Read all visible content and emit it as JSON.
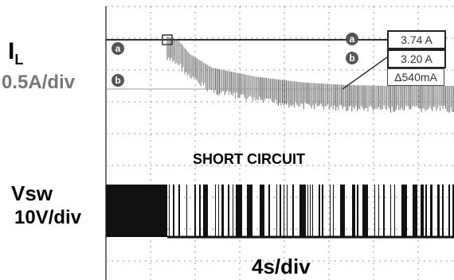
{
  "left_labels": {
    "il_main": "I",
    "il_sub": "L",
    "il_scale": "0.5A/div",
    "vsw": "Vsw",
    "vsw_scale": "10V/div"
  },
  "markers": {
    "a": "a",
    "b": "b"
  },
  "readouts": {
    "a_value": "3.74 A",
    "b_value": "3.20 A",
    "delta": "Δ540mA"
  },
  "annotation": "SHORT CIRCUIT",
  "time_scale": "4s/div",
  "chart_data": {
    "type": "line",
    "x_unit": "s",
    "x_per_div": 4,
    "series": [
      {
        "name": "IL",
        "unit": "A",
        "scale_per_div": 0.5,
        "x": [
          0,
          1,
          2,
          4,
          8,
          12,
          16,
          20,
          24,
          28,
          34
        ],
        "y": [
          3.74,
          3.7,
          3.55,
          3.4,
          3.3,
          3.24,
          3.21,
          3.2,
          3.2,
          3.2,
          3.2
        ]
      },
      {
        "name": "Vsw",
        "unit": "V",
        "scale_per_div": 10,
        "description": "switching node pulses, continuous before short then bursty"
      }
    ],
    "cursors": {
      "a": 3.74,
      "b": 3.2,
      "delta_mA": 540
    },
    "grid": true
  }
}
